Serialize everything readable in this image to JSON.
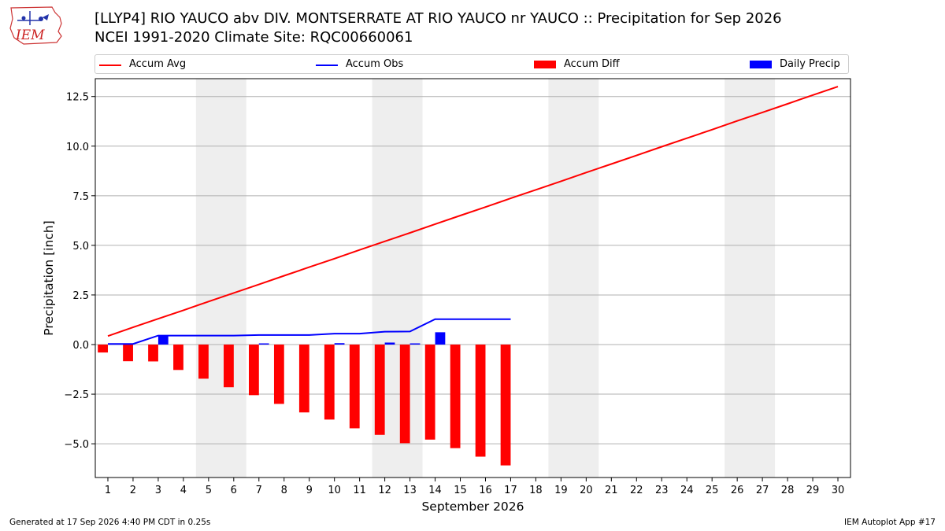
{
  "header": {
    "title_line1": "[LLYP4] RIO YAUCO abv DIV. MONTSERRATE  AT RIO YAUCO nr YAUCO :: Precipitation for Sep 2026",
    "title_line2": "NCEI 1991-2020 Climate Site: RQC00660061",
    "logo_text": "IEM"
  },
  "legend": {
    "items": [
      {
        "label": "Accum Avg",
        "kind": "line",
        "color": "#ff0000"
      },
      {
        "label": "Accum Obs",
        "kind": "line",
        "color": "#0000ff"
      },
      {
        "label": "Accum Diff",
        "kind": "patch",
        "color": "#ff0000"
      },
      {
        "label": "Daily Precip",
        "kind": "patch",
        "color": "#0000ff"
      }
    ]
  },
  "footer": {
    "left": "Generated at 17 Sep 2026 4:40 PM CDT in 0.25s",
    "right": "IEM Autoplot App #17"
  },
  "chart_data": {
    "type": "bar",
    "xlabel": "September 2026",
    "ylabel": "Precipitation [inch]",
    "x": [
      1,
      2,
      3,
      4,
      5,
      6,
      7,
      8,
      9,
      10,
      11,
      12,
      13,
      14,
      15,
      16,
      17,
      18,
      19,
      20,
      21,
      22,
      23,
      24,
      25,
      26,
      27,
      28,
      29,
      30
    ],
    "xlim": [
      0.5,
      30.5
    ],
    "ylim": [
      -6.7,
      13.4
    ],
    "yticks": [
      -5.0,
      -2.5,
      0.0,
      2.5,
      5.0,
      7.5,
      10.0,
      12.5
    ],
    "ytick_labels": [
      "−5.0",
      "−2.5",
      "0.0",
      "2.5",
      "5.0",
      "7.5",
      "10.0",
      "12.5"
    ],
    "grid": "horizontal",
    "weekend_shading_days": [
      [
        5,
        6
      ],
      [
        12,
        13
      ],
      [
        19,
        20
      ],
      [
        26,
        27
      ]
    ],
    "series": [
      {
        "name": "Accum Avg",
        "type": "line",
        "color": "#ff0000",
        "x": [
          1,
          2,
          3,
          4,
          5,
          6,
          7,
          8,
          9,
          10,
          11,
          12,
          13,
          14,
          15,
          16,
          17,
          18,
          19,
          20,
          21,
          22,
          23,
          24,
          25,
          26,
          27,
          28,
          29,
          30
        ],
        "values": [
          0.43,
          0.87,
          1.3,
          1.73,
          2.17,
          2.6,
          3.03,
          3.47,
          3.9,
          4.33,
          4.77,
          5.2,
          5.63,
          6.07,
          6.5,
          6.93,
          7.37,
          7.8,
          8.23,
          8.67,
          9.1,
          9.53,
          9.97,
          10.4,
          10.83,
          11.27,
          11.7,
          12.13,
          12.57,
          13.0
        ]
      },
      {
        "name": "Accum Obs",
        "type": "line",
        "color": "#0000ff",
        "x": [
          1,
          2,
          3,
          4,
          5,
          6,
          7,
          8,
          9,
          10,
          11,
          12,
          13,
          14,
          15,
          16,
          17
        ],
        "values": [
          0.03,
          0.03,
          0.45,
          0.45,
          0.45,
          0.45,
          0.48,
          0.48,
          0.48,
          0.55,
          0.55,
          0.65,
          0.66,
          1.28,
          1.28,
          1.28,
          1.28
        ]
      },
      {
        "name": "Accum Diff",
        "type": "bar",
        "color": "#ff0000",
        "x": [
          1,
          2,
          3,
          4,
          5,
          6,
          7,
          8,
          9,
          10,
          11,
          12,
          13,
          14,
          15,
          16,
          17
        ],
        "values": [
          -0.4,
          -0.84,
          -0.85,
          -1.28,
          -1.72,
          -2.15,
          -2.55,
          -2.99,
          -3.42,
          -3.78,
          -4.22,
          -4.55,
          -4.97,
          -4.79,
          -5.22,
          -5.65,
          -6.09
        ]
      },
      {
        "name": "Daily Precip",
        "type": "bar",
        "color": "#0000ff",
        "x": [
          1,
          2,
          3,
          4,
          5,
          6,
          7,
          8,
          9,
          10,
          11,
          12,
          13,
          14,
          15,
          16,
          17
        ],
        "values": [
          0.03,
          0.0,
          0.42,
          0.0,
          0.0,
          0.0,
          0.03,
          0.0,
          0.0,
          0.07,
          0.0,
          0.1,
          0.01,
          0.62,
          0.0,
          0.0,
          0.0
        ]
      }
    ]
  }
}
